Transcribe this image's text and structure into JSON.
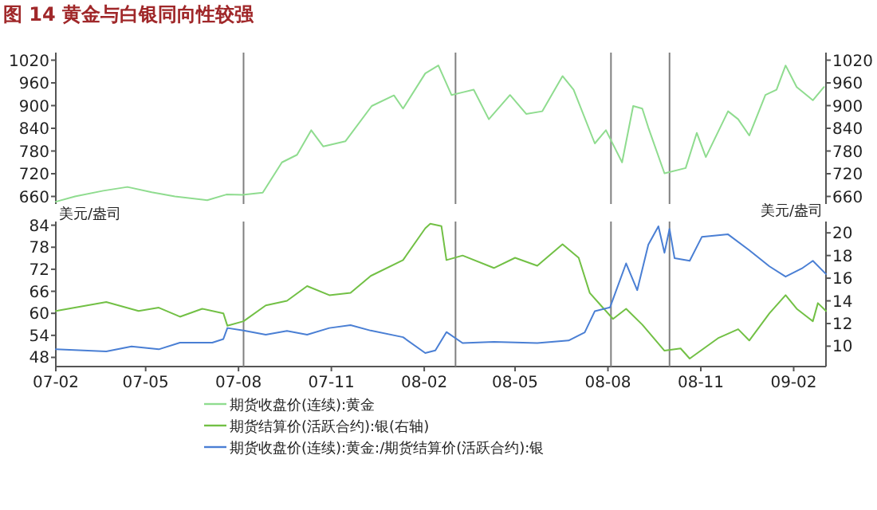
{
  "chart_data": [
    {
      "type": "line",
      "title": "图 14 黄金与白银同向性较强",
      "tick_labels": "y",
      "legend": "bottom",
      "xlim": [
        "2007-02-01",
        "2009-03-05"
      ],
      "ylim": [
        640,
        1040
      ],
      "yticks": [
        660,
        720,
        780,
        840,
        900,
        960,
        1020
      ],
      "y2lim": [
        640,
        1040
      ],
      "y2ticks": [
        660,
        720,
        780,
        840,
        900,
        960,
        1020
      ],
      "ref_lines": [
        {
          "axis": "x",
          "value": "2007-08-06",
          "color": "#808080"
        },
        {
          "axis": "x",
          "value": "2008-03-03",
          "color": "#808080"
        },
        {
          "axis": "x",
          "value": "2008-08-04",
          "color": "#808080"
        },
        {
          "axis": "x",
          "value": "2008-10-01",
          "color": "#808080"
        }
      ],
      "series": [
        {
          "name": "期货收盘价(连续):黄金",
          "color": "#8fdc8f",
          "x": [
            "2007-02-01",
            "2007-02-20",
            "2007-03-20",
            "2007-04-13",
            "2007-05-07",
            "2007-05-30",
            "2007-07-01",
            "2007-07-20",
            "2007-08-05",
            "2007-08-25",
            "2007-09-13",
            "2007-09-28",
            "2007-10-12",
            "2007-10-24",
            "2007-11-15",
            "2007-12-11",
            "2008-01-02",
            "2008-01-11",
            "2008-02-02",
            "2008-02-15",
            "2008-02-28",
            "2008-03-10",
            "2008-03-21",
            "2008-04-05",
            "2008-04-26",
            "2008-05-12",
            "2008-05-28",
            "2008-06-17",
            "2008-06-28",
            "2008-07-19",
            "2008-07-30",
            "2008-08-15",
            "2008-08-26",
            "2008-09-04",
            "2008-09-10",
            "2008-09-26",
            "2008-10-17",
            "2008-10-28",
            "2008-11-06",
            "2008-11-28",
            "2008-12-08",
            "2008-12-19",
            "2009-01-04",
            "2009-01-15",
            "2009-01-24",
            "2009-02-04",
            "2009-02-20",
            "2009-03-03"
          ],
          "values": [
            646,
            660,
            675,
            685,
            671,
            660,
            650,
            665,
            664,
            670,
            750,
            770,
            835,
            792,
            806,
            899,
            927,
            892,
            985,
            1006,
            928,
            935,
            942,
            864,
            928,
            878,
            885,
            978,
            942,
            800,
            835,
            750,
            899,
            892,
            842,
            721,
            735,
            828,
            764,
            885,
            864,
            821,
            928,
            942,
            1006,
            949,
            914,
            949
          ]
        }
      ]
    },
    {
      "type": "line",
      "legend": "bottom",
      "ylabel": "美元/盎司",
      "y2label": "美元/盎司",
      "xlim": [
        "2007-02-01",
        "2009-03-05"
      ],
      "xticks": [
        {
          "value": "2007-02-01",
          "label": "07-02"
        },
        {
          "value": "2007-05-01",
          "label": "07-05"
        },
        {
          "value": "2007-08-01",
          "label": "07-08"
        },
        {
          "value": "2007-11-01",
          "label": "07-11"
        },
        {
          "value": "2008-02-01",
          "label": "08-02"
        },
        {
          "value": "2008-05-01",
          "label": "08-05"
        },
        {
          "value": "2008-08-01",
          "label": "08-08"
        },
        {
          "value": "2008-11-01",
          "label": "08-11"
        },
        {
          "value": "2009-02-01",
          "label": "09-02"
        }
      ],
      "ylim": [
        45.5,
        85
      ],
      "yticks": [
        48,
        54,
        60,
        66,
        72,
        78,
        84
      ],
      "y2lim": [
        8.2,
        21
      ],
      "y2ticks": [
        10,
        12,
        14,
        16,
        18,
        20
      ],
      "ref_lines": [
        {
          "axis": "x",
          "value": "2007-08-06",
          "color": "#808080"
        },
        {
          "axis": "x",
          "value": "2008-03-03",
          "color": "#808080"
        },
        {
          "axis": "x",
          "value": "2008-08-04",
          "color": "#808080"
        },
        {
          "axis": "x",
          "value": "2008-10-01",
          "color": "#808080"
        }
      ],
      "series": [
        {
          "name": "期货结算价(活跃合约):银(右轴)",
          "color": "#72c045",
          "axis": "y2",
          "x": [
            "2007-02-01",
            "2007-03-23",
            "2007-04-24",
            "2007-05-14",
            "2007-06-04",
            "2007-06-26",
            "2007-07-17",
            "2007-07-21",
            "2007-08-06",
            "2007-08-28",
            "2007-09-18",
            "2007-10-08",
            "2007-10-30",
            "2007-11-20",
            "2007-12-10",
            "2008-01-11",
            "2008-02-02",
            "2008-02-07",
            "2008-02-18",
            "2008-02-23",
            "2008-03-10",
            "2008-04-10",
            "2008-05-01",
            "2008-05-23",
            "2008-06-17",
            "2008-07-03",
            "2008-07-14",
            "2008-07-25",
            "2008-08-06",
            "2008-08-19",
            "2008-09-04",
            "2008-09-26",
            "2008-10-12",
            "2008-10-21",
            "2008-11-18",
            "2008-12-08",
            "2008-12-19",
            "2009-01-08",
            "2009-01-24",
            "2009-02-04",
            "2009-02-20",
            "2009-02-25",
            "2009-03-05"
          ],
          "values": [
            13.1,
            13.9,
            13.1,
            13.4,
            12.6,
            13.3,
            12.9,
            11.8,
            12.2,
            13.6,
            14,
            15.3,
            14.5,
            14.7,
            16.2,
            17.6,
            20.4,
            20.8,
            20.6,
            17.6,
            18,
            16.9,
            17.8,
            17.1,
            19,
            17.8,
            14.7,
            13.6,
            12.4,
            13.3,
            11.9,
            9.6,
            9.8,
            8.9,
            10.7,
            11.5,
            10.5,
            12.9,
            14.5,
            13.3,
            12.2,
            13.8,
            13.1
          ]
        },
        {
          "name": "期货收盘价(连续):黄金:/期货结算价(活跃合约):银",
          "color": "#4a7fd4",
          "x": [
            "2007-02-01",
            "2007-03-23",
            "2007-04-17",
            "2007-05-14",
            "2007-06-04",
            "2007-07-06",
            "2007-07-17",
            "2007-07-21",
            "2007-08-06",
            "2007-08-28",
            "2007-09-18",
            "2007-10-08",
            "2007-10-30",
            "2007-11-20",
            "2007-12-10",
            "2008-01-11",
            "2008-02-02",
            "2008-02-12",
            "2008-02-23",
            "2008-03-10",
            "2008-04-10",
            "2008-05-23",
            "2008-06-23",
            "2008-07-09",
            "2008-07-19",
            "2008-08-03",
            "2008-08-19",
            "2008-08-30",
            "2008-09-10",
            "2008-09-20",
            "2008-09-26",
            "2008-10-01",
            "2008-10-06",
            "2008-10-21",
            "2008-11-02",
            "2008-11-28",
            "2008-12-19",
            "2009-01-08",
            "2009-01-24",
            "2009-02-09",
            "2009-02-20",
            "2009-03-05"
          ],
          "values": [
            50.2,
            49.6,
            51,
            50.2,
            52,
            52,
            53,
            56,
            55.3,
            54.2,
            55.2,
            54.2,
            56,
            56.8,
            55.3,
            53.5,
            49.2,
            49.9,
            54.9,
            51.9,
            52.2,
            51.9,
            52.6,
            54.8,
            60.6,
            61.6,
            73.6,
            66.3,
            78.7,
            83.7,
            76.5,
            83,
            75,
            74.3,
            80.8,
            81.5,
            77.2,
            72.8,
            70,
            72.2,
            74.3,
            70.7
          ]
        }
      ]
    }
  ]
}
